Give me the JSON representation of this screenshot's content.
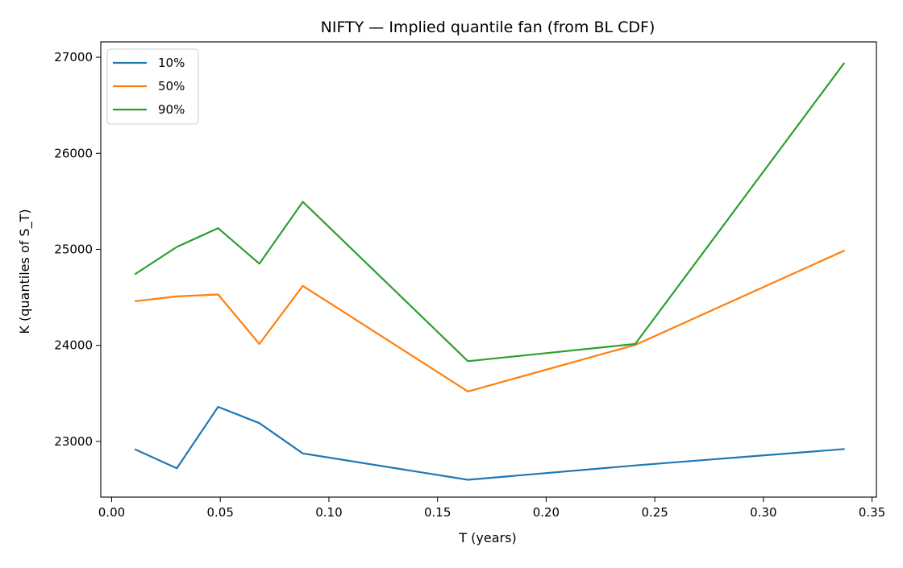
{
  "chart_data": {
    "type": "line",
    "title": "NIFTY — Implied quantile fan (from BL CDF)",
    "xlabel": "T (years)",
    "ylabel": "K (quantiles of S_T)",
    "xlim": [
      -0.005,
      0.352
    ],
    "ylim": [
      22420,
      27160
    ],
    "xticks": [
      0.0,
      0.05,
      0.1,
      0.15,
      0.2,
      0.25,
      0.3,
      0.35
    ],
    "xtick_labels": [
      "0.00",
      "0.05",
      "0.10",
      "0.15",
      "0.20",
      "0.25",
      "0.30",
      "0.35"
    ],
    "yticks": [
      23000,
      24000,
      25000,
      26000,
      27000
    ],
    "ytick_labels": [
      "23000",
      "24000",
      "25000",
      "26000",
      "27000"
    ],
    "grid": false,
    "legend_position": "top-left",
    "x": [
      0.011,
      0.03,
      0.049,
      0.068,
      0.088,
      0.164,
      0.241,
      0.337
    ],
    "series": [
      {
        "name": "10%",
        "color": "#1f77b4",
        "values": [
          22915,
          22720,
          23360,
          23190,
          22875,
          22600,
          22750,
          22920
        ]
      },
      {
        "name": "50%",
        "color": "#ff7f0e",
        "values": [
          24460,
          24510,
          24530,
          24015,
          24620,
          23520,
          24005,
          24985
        ]
      },
      {
        "name": "90%",
        "color": "#2ca02c",
        "values": [
          24745,
          25025,
          25220,
          24850,
          25495,
          23835,
          24015,
          26935
        ]
      }
    ]
  }
}
